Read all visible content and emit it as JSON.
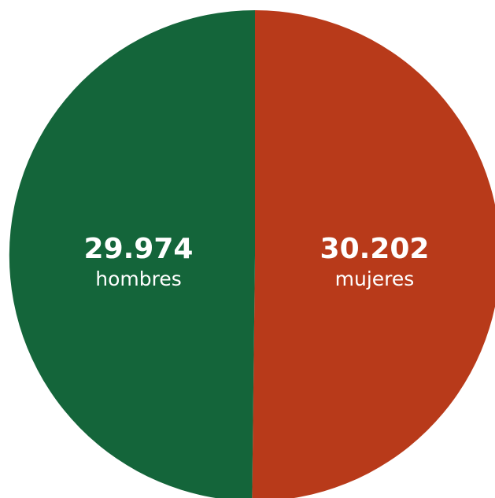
{
  "chart_data": {
    "type": "pie",
    "slices": [
      {
        "value_label": "29.974",
        "label": "hombres",
        "value": 29974,
        "color": "#14653a"
      },
      {
        "value_label": "30.202",
        "label": "mujeres",
        "value": 30202,
        "color": "#b83a1a"
      }
    ]
  }
}
